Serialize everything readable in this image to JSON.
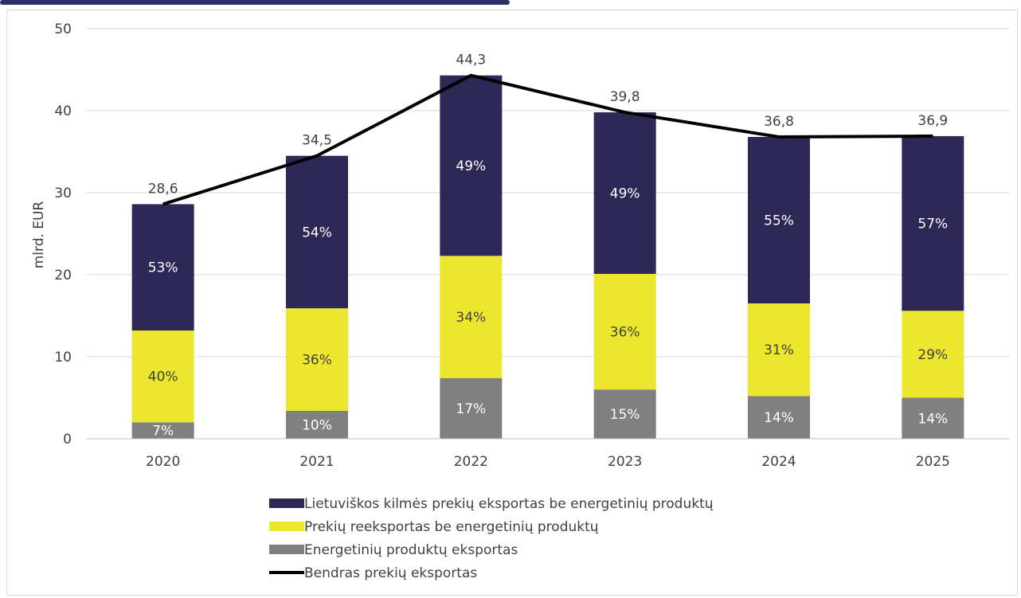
{
  "chart_data": {
    "type": "bar",
    "stacked": true,
    "ylabel": "mlrd. EUR",
    "ylim": [
      0,
      50
    ],
    "yticks": [
      0,
      10,
      20,
      30,
      40,
      50
    ],
    "grid": true,
    "legend_position": "bottom",
    "categories": [
      "2020",
      "2021",
      "2022",
      "2023",
      "2024",
      "2025"
    ],
    "series": [
      {
        "name": "Energetinių produktų eksportas",
        "color": "#808080",
        "values": [
          2.0,
          3.4,
          7.4,
          6.0,
          5.2,
          5.0
        ],
        "labels": [
          "7%",
          "10%",
          "17%",
          "15%",
          "14%",
          "14%"
        ],
        "label_color": "#ffffff"
      },
      {
        "name": "Prekių reeksportas be energetinių produktų",
        "color": "#ede62f",
        "values": [
          11.2,
          12.5,
          14.9,
          14.1,
          11.3,
          10.6
        ],
        "labels": [
          "40%",
          "36%",
          "34%",
          "36%",
          "31%",
          "29%"
        ],
        "label_color": "#404040"
      },
      {
        "name": "Lietuviškos kilmės prekių eksportas be energetinių produktų",
        "color": "#2e2856",
        "values": [
          15.4,
          18.6,
          22.0,
          19.7,
          20.3,
          21.3
        ],
        "labels": [
          "53%",
          "54%",
          "49%",
          "49%",
          "55%",
          "57%"
        ],
        "label_color": "#ffffff"
      }
    ],
    "line": {
      "name": "Bendras prekių eksportas",
      "color": "#000000",
      "values": [
        28.6,
        34.5,
        44.3,
        39.8,
        36.8,
        36.9
      ],
      "labels": [
        "28,6",
        "34,5",
        "44,3",
        "39,8",
        "36,8",
        "36,9"
      ]
    },
    "legend_order": [
      "Lietuviškos kilmės prekių eksportas be energetinių produktų",
      "Prekių reeksportas be energetinių produktų",
      "Energetinių produktų eksportas",
      "Bendras prekių eksportas"
    ]
  }
}
